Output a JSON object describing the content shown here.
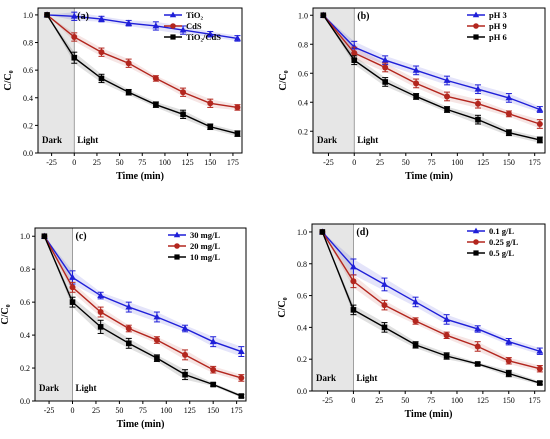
{
  "colors": {
    "blue": "#1f1fd8",
    "red": "#b3261e",
    "black": "#000000",
    "dark_region": "#e6e6e6"
  },
  "chart_data": [
    {
      "type": "line",
      "panel_label": "(a)",
      "xlabel": "Time (min)",
      "ylabel": "C/C₀",
      "x": [
        -30,
        0,
        30,
        60,
        90,
        120,
        150,
        180
      ],
      "xlim": [
        -40,
        185
      ],
      "ylim": [
        0.0,
        1.05
      ],
      "x_ticks": [
        -25,
        0,
        25,
        50,
        75,
        100,
        125,
        150,
        175
      ],
      "y_ticks": [
        0.0,
        0.2,
        0.4,
        0.6,
        0.8,
        1.0
      ],
      "dark_label": "Dark",
      "light_label": "Light",
      "legend_position": "top-right",
      "series": [
        {
          "name": "TiO₂",
          "color": "blue",
          "marker": "triangle",
          "values": [
            1.0,
            0.99,
            0.97,
            0.94,
            0.92,
            0.89,
            0.86,
            0.83
          ],
          "errors": [
            0,
            0.03,
            0.02,
            0.02,
            0.03,
            0.03,
            0.02,
            0.02
          ]
        },
        {
          "name": "CdS",
          "color": "red",
          "marker": "circle",
          "values": [
            1.0,
            0.84,
            0.73,
            0.65,
            0.54,
            0.44,
            0.36,
            0.33
          ],
          "errors": [
            0,
            0.03,
            0.03,
            0.03,
            0.02,
            0.03,
            0.03,
            0.02
          ]
        },
        {
          "name": "TiO₂/CdS",
          "color": "black",
          "marker": "square",
          "values": [
            1.0,
            0.69,
            0.54,
            0.44,
            0.35,
            0.28,
            0.19,
            0.14
          ],
          "errors": [
            0,
            0.04,
            0.03,
            0.02,
            0.02,
            0.03,
            0.02,
            0.02
          ]
        }
      ]
    },
    {
      "type": "line",
      "panel_label": "(b)",
      "xlabel": "Time (min)",
      "ylabel": "C/C₀",
      "x": [
        -30,
        0,
        30,
        60,
        90,
        120,
        150,
        180
      ],
      "xlim": [
        -40,
        185
      ],
      "ylim": [
        0.05,
        1.05
      ],
      "x_ticks": [
        -25,
        0,
        25,
        50,
        75,
        100,
        125,
        150,
        175
      ],
      "y_ticks": [
        0.2,
        0.4,
        0.6,
        0.8,
        1.0
      ],
      "dark_label": "Dark",
      "light_label": "Light",
      "legend_position": "top-right",
      "series": [
        {
          "name": "pH 3",
          "color": "blue",
          "marker": "triangle",
          "values": [
            1.0,
            0.78,
            0.69,
            0.62,
            0.55,
            0.49,
            0.43,
            0.35
          ],
          "errors": [
            0,
            0.04,
            0.03,
            0.03,
            0.03,
            0.03,
            0.03,
            0.02
          ]
        },
        {
          "name": "pH 9",
          "color": "red",
          "marker": "circle",
          "values": [
            1.0,
            0.74,
            0.64,
            0.53,
            0.44,
            0.39,
            0.32,
            0.25
          ],
          "errors": [
            0,
            0.04,
            0.03,
            0.03,
            0.03,
            0.03,
            0.02,
            0.03
          ]
        },
        {
          "name": "pH 6",
          "color": "black",
          "marker": "square",
          "values": [
            1.0,
            0.69,
            0.54,
            0.44,
            0.35,
            0.28,
            0.19,
            0.14
          ],
          "errors": [
            0,
            0.03,
            0.03,
            0.02,
            0.02,
            0.03,
            0.02,
            0.02
          ]
        }
      ]
    },
    {
      "type": "line",
      "panel_label": "(c)",
      "xlabel": "Time (min)",
      "ylabel": "C/C₀",
      "x": [
        -30,
        0,
        30,
        60,
        90,
        120,
        150,
        180
      ],
      "xlim": [
        -40,
        185
      ],
      "ylim": [
        0.0,
        1.05
      ],
      "x_ticks": [
        -25,
        0,
        25,
        50,
        75,
        100,
        125,
        150,
        175
      ],
      "y_ticks": [
        0.0,
        0.2,
        0.4,
        0.6,
        0.8,
        1.0
      ],
      "dark_label": "Dark",
      "light_label": "Light",
      "legend_position": "top-right",
      "series": [
        {
          "name": "30 mg/L",
          "color": "blue",
          "marker": "triangle",
          "values": [
            1.0,
            0.75,
            0.64,
            0.57,
            0.51,
            0.44,
            0.36,
            0.3
          ],
          "errors": [
            0,
            0.04,
            0.02,
            0.03,
            0.03,
            0.02,
            0.03,
            0.03
          ]
        },
        {
          "name": "20 mg/L",
          "color": "red",
          "marker": "circle",
          "values": [
            1.0,
            0.69,
            0.54,
            0.44,
            0.37,
            0.28,
            0.19,
            0.14
          ],
          "errors": [
            0,
            0.03,
            0.03,
            0.02,
            0.02,
            0.03,
            0.02,
            0.02
          ]
        },
        {
          "name": "10 mg/L",
          "color": "black",
          "marker": "square",
          "values": [
            1.0,
            0.6,
            0.45,
            0.35,
            0.26,
            0.16,
            0.1,
            0.03
          ],
          "errors": [
            0,
            0.03,
            0.04,
            0.03,
            0.02,
            0.03,
            0.01,
            0.01
          ]
        }
      ]
    },
    {
      "type": "line",
      "panel_label": "(d)",
      "xlabel": "Time (min)",
      "ylabel": "C/C₀",
      "x": [
        -30,
        0,
        30,
        60,
        90,
        120,
        150,
        180
      ],
      "xlim": [
        -40,
        185
      ],
      "ylim": [
        0.0,
        1.05
      ],
      "x_ticks": [
        -25,
        0,
        25,
        50,
        75,
        100,
        125,
        150,
        175
      ],
      "y_ticks": [
        0.0,
        0.2,
        0.4,
        0.6,
        0.8,
        1.0
      ],
      "dark_label": "Dark",
      "light_label": "Light",
      "legend_position": "top-right",
      "series": [
        {
          "name": "0.1 g/L",
          "color": "blue",
          "marker": "triangle",
          "values": [
            1.0,
            0.78,
            0.67,
            0.56,
            0.45,
            0.39,
            0.31,
            0.25
          ],
          "errors": [
            0,
            0.05,
            0.04,
            0.03,
            0.03,
            0.02,
            0.02,
            0.02
          ]
        },
        {
          "name": "0.25 g/L",
          "color": "red",
          "marker": "circle",
          "values": [
            1.0,
            0.69,
            0.54,
            0.44,
            0.35,
            0.28,
            0.19,
            0.14
          ],
          "errors": [
            0,
            0.04,
            0.03,
            0.02,
            0.02,
            0.03,
            0.02,
            0.02
          ]
        },
        {
          "name": "0.5 g/L",
          "color": "black",
          "marker": "square",
          "values": [
            1.0,
            0.51,
            0.4,
            0.29,
            0.22,
            0.17,
            0.11,
            0.05
          ],
          "errors": [
            0,
            0.03,
            0.03,
            0.02,
            0.02,
            0.01,
            0.02,
            0.01
          ]
        }
      ]
    }
  ]
}
